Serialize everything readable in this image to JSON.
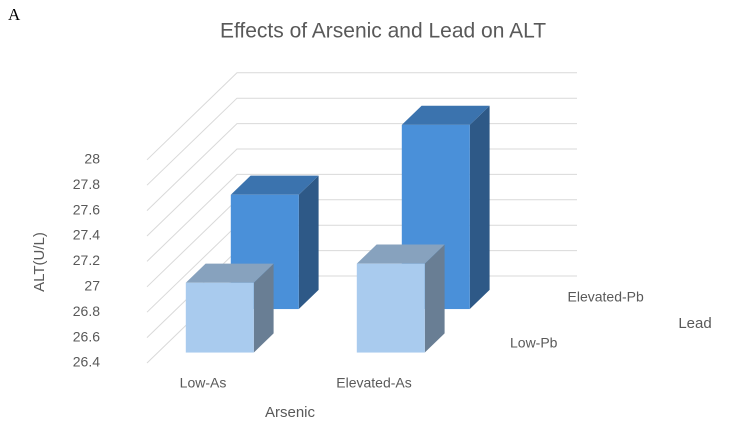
{
  "chart_data": {
    "type": "bar3d",
    "panel_label": "A",
    "title": "Effects of Arsenic and Lead on ALT",
    "y_label": "ALT(U/L)",
    "x_label": "Arsenic",
    "z_label": "Lead",
    "categories": [
      "Low-As",
      "Elevated-As"
    ],
    "series": [
      {
        "name": "Low-Pb",
        "color": "#a9cbee",
        "values": [
          26.95,
          27.1
        ]
      },
      {
        "name": "Elevated-Pb",
        "color": "#4a90d9",
        "values": [
          27.3,
          27.85
        ]
      }
    ],
    "ylim": [
      26.4,
      28
    ],
    "yticks": [
      26.4,
      26.6,
      26.8,
      27,
      27.2,
      27.4,
      27.6,
      27.8,
      28
    ],
    "grid": true
  }
}
